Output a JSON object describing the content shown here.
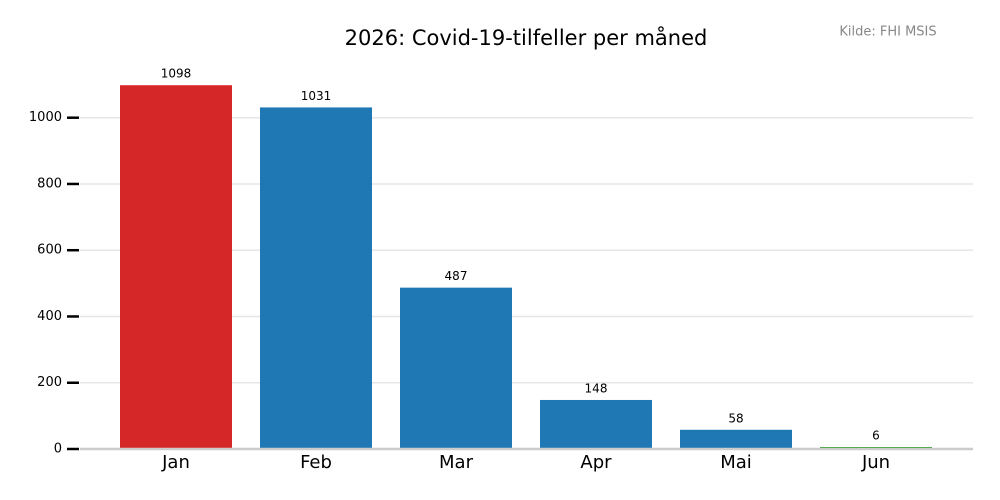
{
  "chart_data": {
    "type": "bar",
    "title": "2026: Covid-19-tilfeller per måned",
    "source": "Kilde: FHI MSIS",
    "categories": [
      "Jan",
      "Feb",
      "Mar",
      "Apr",
      "Mai",
      "Jun"
    ],
    "values": [
      1098,
      1031,
      487,
      148,
      58,
      6
    ],
    "colors": [
      "#d62728",
      "#1f77b4",
      "#1f77b4",
      "#1f77b4",
      "#1f77b4",
      "#2ca02c"
    ],
    "ylim": [
      0,
      1150
    ],
    "yticks": [
      0,
      200,
      400,
      600,
      800,
      1000
    ],
    "grid": true
  }
}
